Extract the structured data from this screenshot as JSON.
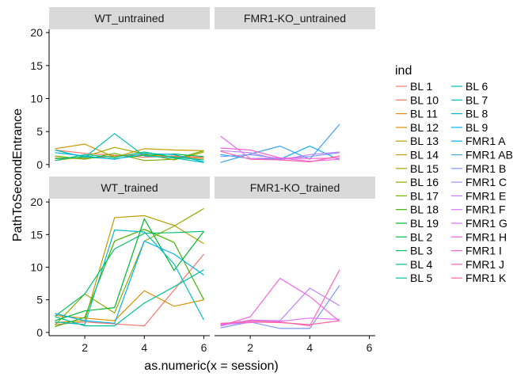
{
  "chart_data": {
    "type": "line",
    "xlabel": "as.numeric(x = session)",
    "ylabel": "PathToSecondEntrance",
    "xlim": [
      0.8,
      6.2
    ],
    "ylim": [
      -0.5,
      20.5
    ],
    "x_ticks": [
      "2",
      "4",
      "6"
    ],
    "y_ticks": [
      "0",
      "5",
      "10",
      "15",
      "20"
    ],
    "grid": false,
    "legend_placement": "right",
    "legend_title": "ind",
    "legend": [
      {
        "name": "BL 1",
        "color": "#F8766D"
      },
      {
        "name": "BL 10",
        "color": "#F07E4E"
      },
      {
        "name": "BL 11",
        "color": "#E7861B"
      },
      {
        "name": "BL 12",
        "color": "#DB8E00"
      },
      {
        "name": "BL 13",
        "color": "#CC9600"
      },
      {
        "name": "BL 14",
        "color": "#BB9D00"
      },
      {
        "name": "BL 15",
        "color": "#A6A400"
      },
      {
        "name": "BL 16",
        "color": "#8EAB00"
      },
      {
        "name": "BL 17",
        "color": "#6FB000"
      },
      {
        "name": "BL 18",
        "color": "#3DB500"
      },
      {
        "name": "BL 19",
        "color": "#00B82B"
      },
      {
        "name": "BL 2",
        "color": "#00BB4E"
      },
      {
        "name": "BL 3",
        "color": "#00BD6A"
      },
      {
        "name": "BL 4",
        "color": "#00BF83"
      },
      {
        "name": "BL 5",
        "color": "#00C09B"
      },
      {
        "name": "BL 6",
        "color": "#00C0B2"
      },
      {
        "name": "BL 7",
        "color": "#00BDC7"
      },
      {
        "name": "BL 8",
        "color": "#00B9DA"
      },
      {
        "name": "BL 9",
        "color": "#00B3EC"
      },
      {
        "name": "FMR1 A",
        "color": "#00ABFB"
      },
      {
        "name": "FMR1 AB",
        "color": "#3DA1FF"
      },
      {
        "name": "FMR1 B",
        "color": "#7E96FF"
      },
      {
        "name": "FMR1 C",
        "color": "#A58AFF"
      },
      {
        "name": "FMR1 E",
        "color": "#C27FFF"
      },
      {
        "name": "FMR1 F",
        "color": "#D875FF"
      },
      {
        "name": "FMR1 G",
        "color": "#E96BF4"
      },
      {
        "name": "FMR1 H",
        "color": "#F564E3"
      },
      {
        "name": "FMR1 I",
        "color": "#FC61D0"
      },
      {
        "name": "FMR1 J",
        "color": "#FF62BC"
      },
      {
        "name": "FMR1 K",
        "color": "#FF67A4"
      }
    ],
    "panels": [
      {
        "title": "WT_untrained",
        "series": [
          {
            "color": "#F8766D",
            "x": [
              1,
              2,
              3,
              4,
              5,
              6
            ],
            "y": [
              2.2,
              1.7,
              1.4,
              1.1,
              1.3,
              1.1
            ]
          },
          {
            "color": "#E7861B",
            "x": [
              1,
              2,
              3,
              4,
              5,
              6
            ],
            "y": [
              1.0,
              0.9,
              1.3,
              1.5,
              1.2,
              0.9
            ]
          },
          {
            "color": "#CC9600",
            "x": [
              1,
              2,
              3,
              4,
              5,
              6
            ],
            "y": [
              2.4,
              3.1,
              1.1,
              2.4,
              2.2,
              2.1
            ]
          },
          {
            "color": "#A6A400",
            "x": [
              1,
              2,
              3,
              4,
              5,
              6
            ],
            "y": [
              0.6,
              1.2,
              2.6,
              1.6,
              0.7,
              1.9
            ]
          },
          {
            "color": "#6FB000",
            "x": [
              1,
              2,
              3,
              4,
              5,
              6
            ],
            "y": [
              1.3,
              0.8,
              1.7,
              0.6,
              0.8,
              2.1
            ]
          },
          {
            "color": "#00BB4E",
            "x": [
              1,
              2,
              3,
              4,
              5,
              6
            ],
            "y": [
              0.9,
              1.1,
              0.9,
              1.4,
              1.6,
              1.2
            ]
          },
          {
            "color": "#00C0B2",
            "x": [
              1,
              2,
              3,
              4,
              5,
              6
            ],
            "y": [
              2.2,
              1.1,
              4.7,
              1.3,
              1.0,
              0.3
            ]
          },
          {
            "color": "#00B3EC",
            "x": [
              1,
              2,
              3,
              4,
              5,
              6
            ],
            "y": [
              1.8,
              1.3,
              0.8,
              1.7,
              1.5,
              0.4
            ]
          },
          {
            "color": "#00BF83",
            "x": [
              1,
              2,
              3,
              4,
              5,
              6
            ],
            "y": [
              0.6,
              1.5,
              1.1,
              1.9,
              1.1,
              0.7
            ]
          }
        ]
      },
      {
        "title": "FMR1-KO_untrained",
        "series": [
          {
            "color": "#3DA1FF",
            "x": [
              1,
              2,
              3,
              4,
              5
            ],
            "y": [
              0.3,
              1.6,
              2.8,
              0.8,
              6.1
            ]
          },
          {
            "color": "#00ABFB",
            "x": [
              1,
              2,
              3,
              4,
              5
            ],
            "y": [
              1.5,
              0.9,
              0.8,
              2.8,
              0.7
            ]
          },
          {
            "color": "#7E96FF",
            "x": [
              1,
              2,
              3,
              4,
              5
            ],
            "y": [
              1.2,
              1.5,
              0.9,
              1.2,
              1.8
            ]
          },
          {
            "color": "#C27FFF",
            "x": [
              1,
              2,
              3,
              4,
              5
            ],
            "y": [
              2.1,
              1.8,
              0.7,
              1.5,
              1.9
            ]
          },
          {
            "color": "#E96BF4",
            "x": [
              1,
              2,
              3,
              4,
              5
            ],
            "y": [
              4.3,
              0.9,
              1.0,
              0.5,
              0.8
            ]
          },
          {
            "color": "#FC61D0",
            "x": [
              1,
              2,
              3,
              4,
              5
            ],
            "y": [
              2.5,
              2.2,
              1.0,
              0.9,
              1.0
            ]
          },
          {
            "color": "#FF67A4",
            "x": [
              1,
              2,
              3,
              4,
              5
            ],
            "y": [
              2.0,
              0.8,
              0.7,
              0.4,
              1.3
            ]
          }
        ]
      },
      {
        "title": "WT_trained",
        "series": [
          {
            "color": "#F8766D",
            "x": [
              1,
              2,
              3,
              4,
              5,
              6
            ],
            "y": [
              1.2,
              1.6,
              1.3,
              1.0,
              6.5,
              12.0
            ]
          },
          {
            "color": "#DB8E00",
            "x": [
              1,
              2,
              3,
              4,
              5,
              6
            ],
            "y": [
              2.6,
              2.2,
              1.8,
              6.4,
              4.0,
              5.0
            ]
          },
          {
            "color": "#BB9D00",
            "x": [
              1,
              2,
              3,
              4,
              5,
              6
            ],
            "y": [
              1.5,
              1.8,
              17.6,
              17.9,
              16.4,
              13.6
            ]
          },
          {
            "color": "#8EAB00",
            "x": [
              1,
              2,
              3,
              4,
              5,
              6
            ],
            "y": [
              1.1,
              5.9,
              3.0,
              14.0,
              16.3,
              19.0
            ]
          },
          {
            "color": "#3DB500",
            "x": [
              1,
              2,
              3,
              4,
              5,
              6
            ],
            "y": [
              0.9,
              2.3,
              14.0,
              15.8,
              13.8,
              5.0
            ]
          },
          {
            "color": "#00B82B",
            "x": [
              1,
              2,
              3,
              4,
              5,
              6
            ],
            "y": [
              1.8,
              3.3,
              3.8,
              17.4,
              9.5,
              15.5
            ]
          },
          {
            "color": "#00BD6A",
            "x": [
              1,
              2,
              3,
              4,
              5,
              6
            ],
            "y": [
              2.5,
              5.9,
              12.8,
              15.2,
              15.3,
              15.5
            ]
          },
          {
            "color": "#00C09B",
            "x": [
              1,
              2,
              3,
              4,
              5,
              6
            ],
            "y": [
              2.4,
              1.0,
              1.0,
              4.5,
              7.0,
              9.6
            ]
          },
          {
            "color": "#00BDC7",
            "x": [
              1,
              2,
              3,
              4,
              5,
              6
            ],
            "y": [
              1.6,
              1.2,
              15.7,
              15.4,
              10.5,
              1.9
            ]
          },
          {
            "color": "#00B3EC",
            "x": [
              1,
              2,
              3,
              4,
              5,
              6
            ],
            "y": [
              2.9,
              1.8,
              1.4,
              14.0,
              12.0,
              8.8
            ]
          }
        ]
      },
      {
        "title": "FMR1-KO_trained",
        "series": [
          {
            "color": "#7E96FF",
            "x": [
              1,
              2,
              3,
              4,
              5
            ],
            "y": [
              0.7,
              1.6,
              0.6,
              0.6,
              7.2
            ]
          },
          {
            "color": "#C27FFF",
            "x": [
              1,
              2,
              3,
              4,
              5
            ],
            "y": [
              1.0,
              1.9,
              1.8,
              6.8,
              4.1
            ]
          },
          {
            "color": "#D875FF",
            "x": [
              1,
              2,
              3,
              4,
              5
            ],
            "y": [
              1.2,
              1.5,
              1.7,
              2.2,
              2.0
            ]
          },
          {
            "color": "#F564E3",
            "x": [
              1,
              2,
              3,
              4,
              5
            ],
            "y": [
              1.0,
              2.4,
              8.3,
              5.5,
              1.7
            ]
          },
          {
            "color": "#FF62BC",
            "x": [
              1,
              2,
              3,
              4,
              5
            ],
            "y": [
              1.3,
              1.8,
              1.6,
              1.0,
              9.6
            ]
          },
          {
            "color": "#FF67A4",
            "x": [
              1,
              2,
              3,
              4,
              5
            ],
            "y": [
              1.4,
              1.6,
              1.5,
              1.2,
              1.8
            ]
          }
        ]
      }
    ]
  }
}
